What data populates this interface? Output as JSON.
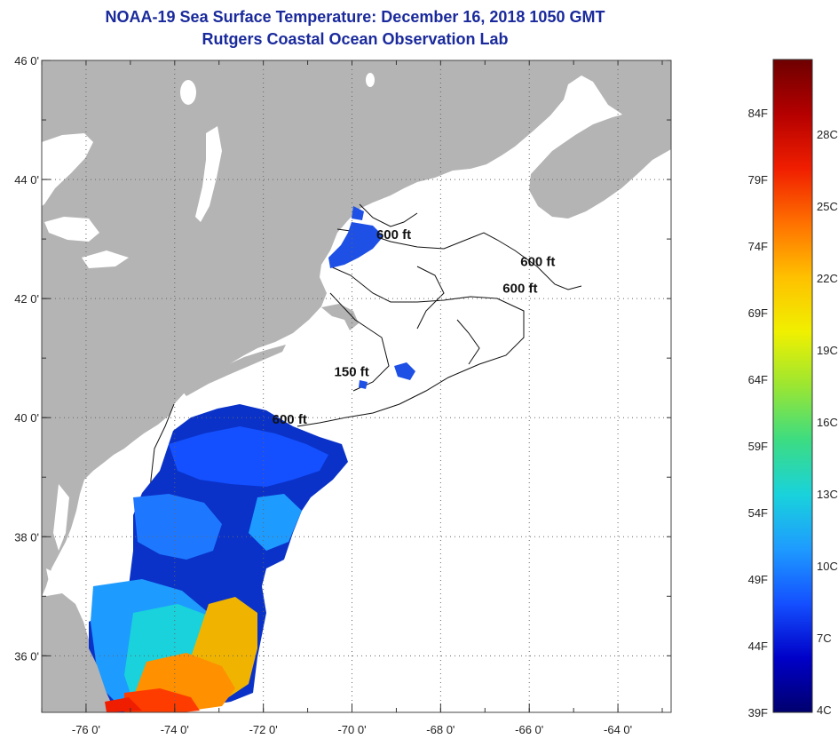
{
  "header": {
    "title": "NOAA-19 Sea Surface Temperature:  December 16, 2018 1050 GMT",
    "subtitle": "Rutgers Coastal Ocean Observation Lab"
  },
  "map": {
    "lon_range": [
      -77,
      -62.8
    ],
    "lat_range": [
      35.05,
      46
    ],
    "lon_ticks": [
      {
        "value": -76,
        "label": "-76 0'"
      },
      {
        "value": -74,
        "label": "-74 0'"
      },
      {
        "value": -72,
        "label": "-72 0'"
      },
      {
        "value": -70,
        "label": "-70 0'"
      },
      {
        "value": -68,
        "label": "-68 0'"
      },
      {
        "value": -66,
        "label": "-66 0'"
      },
      {
        "value": -64,
        "label": "-64 0'"
      }
    ],
    "lat_ticks": [
      {
        "value": 46,
        "label": "46 0'"
      },
      {
        "value": 44,
        "label": "44 0'"
      },
      {
        "value": 42,
        "label": "42 0'"
      },
      {
        "value": 40,
        "label": "40 0'"
      },
      {
        "value": 38,
        "label": "38 0'"
      },
      {
        "value": 36,
        "label": "36 0'"
      }
    ],
    "grid": "dotted",
    "land_color": "#b4b4b4",
    "ocean_color": "#ffffff",
    "contour_labels": [
      {
        "text": "600 ft",
        "lon": -69.45,
        "lat": 43.0
      },
      {
        "text": "600 ft",
        "lon": -66.2,
        "lat": 42.55
      },
      {
        "text": "600 ft",
        "lon": -66.6,
        "lat": 42.1
      },
      {
        "text": "150 ft",
        "lon": -70.4,
        "lat": 40.7
      },
      {
        "text": "600 ft",
        "lon": -71.8,
        "lat": 39.9
      }
    ]
  },
  "colorbar": {
    "range_f": [
      39,
      88
    ],
    "fahrenheit_labels": [
      "84F",
      "79F",
      "74F",
      "69F",
      "64F",
      "59F",
      "54F",
      "49F",
      "44F",
      "39F"
    ],
    "celsius_labels": [
      "28C",
      "25C",
      "22C",
      "19C",
      "16C",
      "13C",
      "10C",
      "7C",
      "4C"
    ],
    "colors": [
      "#00006e",
      "#0000c8",
      "#1450ff",
      "#1e9bff",
      "#19d2dc",
      "#3cdc82",
      "#9be632",
      "#f0f000",
      "#ffc000",
      "#ff7000",
      "#f01e00",
      "#b40000",
      "#6e0000"
    ]
  }
}
